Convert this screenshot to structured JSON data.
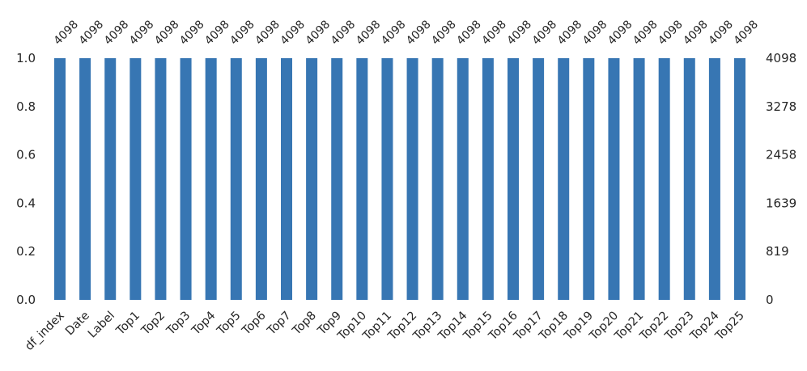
{
  "chart_data": {
    "type": "bar",
    "categories": [
      "df_index",
      "Date",
      "Label",
      "Top1",
      "Top2",
      "Top3",
      "Top4",
      "Top5",
      "Top6",
      "Top7",
      "Top8",
      "Top9",
      "Top10",
      "Top11",
      "Top12",
      "Top13",
      "Top14",
      "Top15",
      "Top16",
      "Top17",
      "Top18",
      "Top19",
      "Top20",
      "Top21",
      "Top22",
      "Top23",
      "Top24",
      "Top25"
    ],
    "values": [
      1,
      1,
      1,
      1,
      1,
      1,
      1,
      1,
      1,
      1,
      1,
      1,
      1,
      1,
      1,
      1,
      1,
      1,
      1,
      1,
      1,
      1,
      1,
      1,
      1,
      1,
      1,
      1
    ],
    "counts": [
      "4098",
      "4098",
      "4098",
      "4098",
      "4098",
      "4098",
      "4098",
      "4098",
      "4098",
      "4098",
      "4098",
      "4098",
      "4098",
      "4098",
      "4098",
      "4098",
      "4098",
      "4098",
      "4098",
      "4098",
      "4098",
      "4098",
      "4098",
      "4098",
      "4098",
      "4098",
      "4098",
      "4098"
    ],
    "ylim": [
      0,
      1
    ],
    "left_ticks": [
      "0.0",
      "0.2",
      "0.4",
      "0.6",
      "0.8",
      "1.0"
    ],
    "right_ticks": [
      "0",
      "819",
      "1639",
      "2458",
      "3278",
      "4098"
    ],
    "bar_color": "#3776b3",
    "grid": false
  }
}
